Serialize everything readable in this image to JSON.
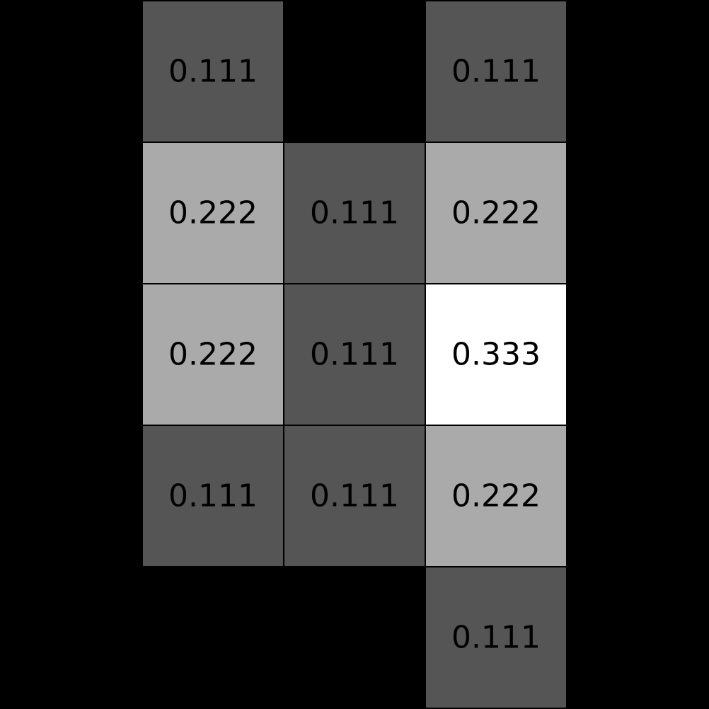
{
  "chart_data": {
    "type": "heatmap",
    "rows": 5,
    "cols": 5,
    "cells": [
      {
        "row": 0,
        "col": 1,
        "value": 0.111,
        "label": "0.111"
      },
      {
        "row": 0,
        "col": 3,
        "value": 0.111,
        "label": "0.111"
      },
      {
        "row": 1,
        "col": 1,
        "value": 0.222,
        "label": "0.222"
      },
      {
        "row": 1,
        "col": 2,
        "value": 0.111,
        "label": "0.111"
      },
      {
        "row": 1,
        "col": 3,
        "value": 0.222,
        "label": "0.222"
      },
      {
        "row": 2,
        "col": 1,
        "value": 0.222,
        "label": "0.222"
      },
      {
        "row": 2,
        "col": 2,
        "value": 0.111,
        "label": "0.111"
      },
      {
        "row": 2,
        "col": 3,
        "value": 0.333,
        "label": "0.333"
      },
      {
        "row": 3,
        "col": 1,
        "value": 0.111,
        "label": "0.111"
      },
      {
        "row": 3,
        "col": 2,
        "value": 0.111,
        "label": "0.111"
      },
      {
        "row": 3,
        "col": 3,
        "value": 0.222,
        "label": "0.222"
      },
      {
        "row": 4,
        "col": 3,
        "value": 0.111,
        "label": "0.111"
      }
    ],
    "colors": {
      "background": "#000000",
      "0.111": "#555555",
      "0.222": "#aaaaaa",
      "0.333": "#ffffff"
    }
  }
}
